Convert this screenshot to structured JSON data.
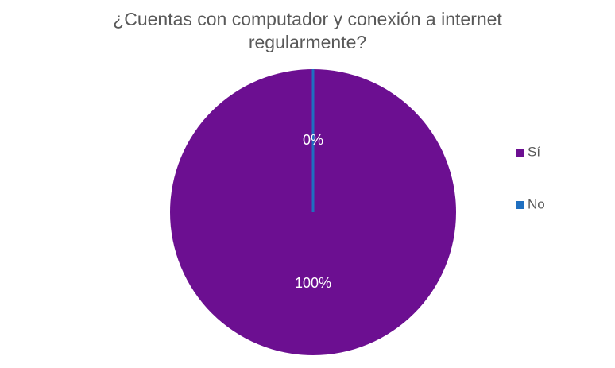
{
  "chart_data": {
    "type": "pie",
    "title": "¿Cuentas con computador y conexión a internet regularmente?",
    "categories": [
      "Sí",
      "No"
    ],
    "values": [
      100,
      0
    ],
    "value_labels": [
      "100%",
      "0%"
    ],
    "colors": [
      "#6c0f91",
      "#1f6fc0"
    ],
    "legend": "right"
  }
}
